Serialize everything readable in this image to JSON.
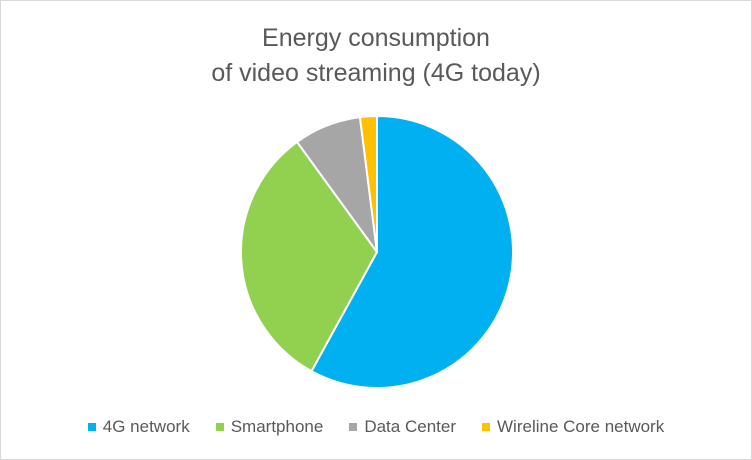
{
  "chart_data": {
    "type": "pie",
    "title_line1": "Energy consumption",
    "title_line2": "of video streaming (4G today)",
    "categories": [
      "4G network",
      "Smartphone",
      "Data Center",
      "Wireline Core network"
    ],
    "values": [
      58,
      32,
      8,
      2
    ],
    "colors": [
      "#00b0f0",
      "#92d050",
      "#a6a6a6",
      "#ffc000"
    ],
    "legend_position": "bottom",
    "start_angle_deg": 0,
    "direction": "clockwise"
  }
}
